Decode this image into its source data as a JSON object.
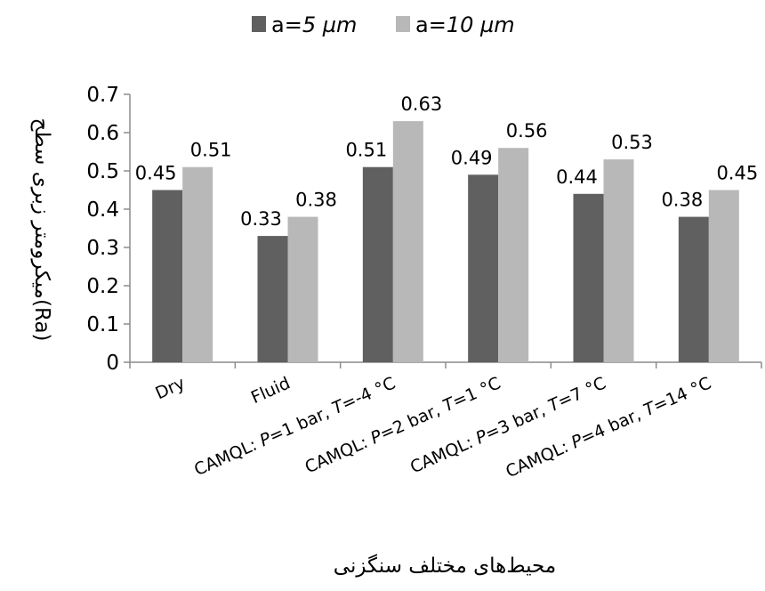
{
  "chart_data": {
    "type": "bar",
    "categories": [
      [
        "Dry"
      ],
      [
        "Fluid"
      ],
      [
        "CAMQL: ",
        "P",
        "=1 bar, ",
        "T",
        "=-4 °C"
      ],
      [
        "CAMQL: ",
        "P",
        "=2 bar, ",
        "T",
        "=1 °C"
      ],
      [
        "CAMQL: ",
        "P",
        "=3 bar, ",
        "T",
        "=7 °C"
      ],
      [
        "CAMQL: ",
        "P",
        "=4 bar, ",
        "T",
        "=14 °C"
      ]
    ],
    "series": [
      {
        "name": [
          "a",
          "=5 µm"
        ],
        "color": "#606060",
        "values": [
          0.45,
          0.33,
          0.51,
          0.49,
          0.44,
          0.38
        ],
        "labels": [
          "0.45",
          "0.33",
          "0.51",
          "0.49",
          "0.44",
          "0.38"
        ]
      },
      {
        "name": [
          "a",
          "=10 µm"
        ],
        "color": "#b8b8b8",
        "values": [
          0.51,
          0.38,
          0.63,
          0.56,
          0.53,
          0.45
        ],
        "labels": [
          "0.51",
          "0.38",
          "0.63",
          "0.56",
          "0.53",
          "0.45"
        ]
      }
    ],
    "title": "",
    "xlabel": "محیط‌های مختلف سنگزنی",
    "ylabel": "(Ra)میکرومتر  زبری سطح",
    "ylim": [
      0,
      0.7
    ],
    "yticks": [
      "0",
      "0.1",
      "0.2",
      "0.3",
      "0.4",
      "0.5",
      "0.6",
      "0.7"
    ],
    "grid": false,
    "legend_position": "top-center"
  }
}
